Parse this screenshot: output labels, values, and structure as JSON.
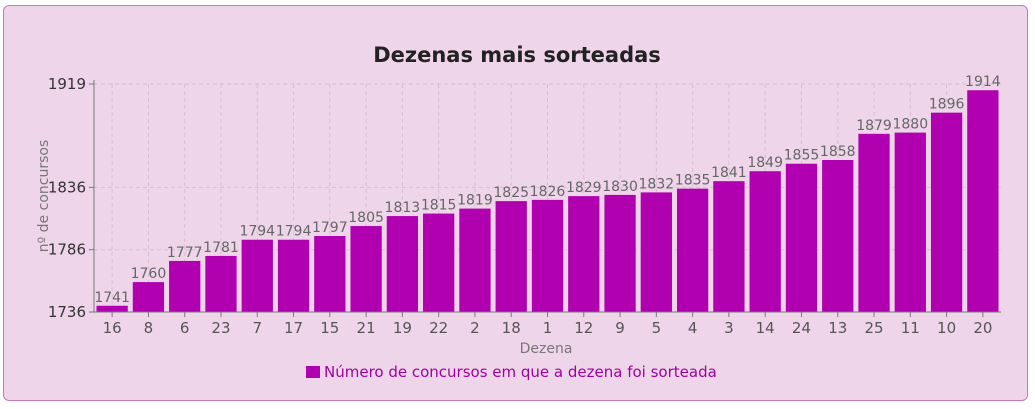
{
  "chart_data": {
    "type": "bar",
    "title": "Dezenas mais sorteadas",
    "xlabel": "Dezena",
    "ylabel": "nº de concursos",
    "categories": [
      "16",
      "8",
      "6",
      "23",
      "7",
      "17",
      "15",
      "21",
      "19",
      "22",
      "2",
      "18",
      "1",
      "12",
      "9",
      "5",
      "4",
      "3",
      "14",
      "24",
      "13",
      "25",
      "11",
      "10",
      "20"
    ],
    "series": [
      {
        "name": "Número de concursos em que a dezena foi sorteada",
        "values": [
          1741,
          1760,
          1777,
          1781,
          1794,
          1794,
          1797,
          1805,
          1813,
          1815,
          1819,
          1825,
          1826,
          1829,
          1830,
          1832,
          1835,
          1841,
          1849,
          1855,
          1858,
          1879,
          1880,
          1896,
          1914
        ]
      }
    ],
    "yticks": [
      1736,
      1786,
      1836,
      1919
    ],
    "ylim": [
      1736,
      1919
    ],
    "grid": true,
    "legend_position": "bottom",
    "colors": {
      "bar": "#b000b0",
      "legend_text": "#a000a0",
      "background": "#efd5ea",
      "border": "#c77ab8",
      "grid": "#d9bdd3"
    }
  }
}
